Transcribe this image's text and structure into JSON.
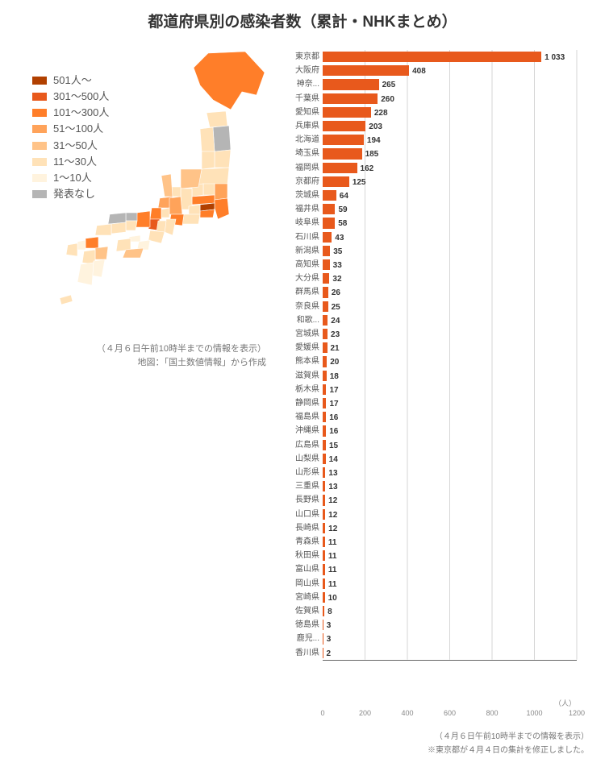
{
  "title": "都道府県別の感染者数（累計・NHKまとめ）",
  "title_fontsize": 19,
  "title_color": "#333333",
  "background_color": "#ffffff",
  "legend": {
    "items": [
      {
        "label": "501人～",
        "color": "#b14000"
      },
      {
        "label": "301～500人",
        "color": "#e8591c"
      },
      {
        "label": "101～300人",
        "color": "#ff7e29"
      },
      {
        "label": "51～100人",
        "color": "#ffa35a"
      },
      {
        "label": "31～50人",
        "color": "#ffc388"
      },
      {
        "label": "11～30人",
        "color": "#ffe2b8"
      },
      {
        "label": "1～10人",
        "color": "#fff3de"
      },
      {
        "label": "発表なし",
        "color": "#b5b5b5"
      }
    ],
    "font_size": 13,
    "text_color": "#555555"
  },
  "map_captions": {
    "line1": "（４月６日午前10時半までの情報を表示）",
    "line2": "地図：「国土数値情報」から作成"
  },
  "bar_chart": {
    "type": "bar-horizontal",
    "xmin": 0,
    "xmax": 1200,
    "xtick_step": 200,
    "x_unit": "（人）",
    "grid_color": "#cccccc",
    "axis_color": "#666666",
    "tick_font_size": 9,
    "tick_color": "#888888",
    "bar_color": "#e8591c",
    "label_font_size": 10,
    "label_color": "#555555",
    "value_font_size": 10,
    "value_color": "#333333",
    "row_height": 17.2,
    "bars": [
      {
        "label": "東京都",
        "value": 1033,
        "display": "1 033"
      },
      {
        "label": "大阪府",
        "value": 408
      },
      {
        "label": "神奈...",
        "value": 265
      },
      {
        "label": "千葉県",
        "value": 260
      },
      {
        "label": "愛知県",
        "value": 228
      },
      {
        "label": "兵庫県",
        "value": 203
      },
      {
        "label": "北海道",
        "value": 194
      },
      {
        "label": "埼玉県",
        "value": 185
      },
      {
        "label": "福岡県",
        "value": 162
      },
      {
        "label": "京都府",
        "value": 125
      },
      {
        "label": "茨城県",
        "value": 64
      },
      {
        "label": "福井県",
        "value": 59
      },
      {
        "label": "岐阜県",
        "value": 58
      },
      {
        "label": "石川県",
        "value": 43
      },
      {
        "label": "新潟県",
        "value": 35
      },
      {
        "label": "高知県",
        "value": 33
      },
      {
        "label": "大分県",
        "value": 32
      },
      {
        "label": "群馬県",
        "value": 26
      },
      {
        "label": "奈良県",
        "value": 25
      },
      {
        "label": "和歌...",
        "value": 24
      },
      {
        "label": "宮城県",
        "value": 23
      },
      {
        "label": "愛媛県",
        "value": 21
      },
      {
        "label": "熊本県",
        "value": 20
      },
      {
        "label": "滋賀県",
        "value": 18
      },
      {
        "label": "栃木県",
        "value": 17
      },
      {
        "label": "静岡県",
        "value": 17
      },
      {
        "label": "福島県",
        "value": 16
      },
      {
        "label": "沖縄県",
        "value": 16
      },
      {
        "label": "広島県",
        "value": 15
      },
      {
        "label": "山梨県",
        "value": 14
      },
      {
        "label": "山形県",
        "value": 13
      },
      {
        "label": "三重県",
        "value": 13
      },
      {
        "label": "長野県",
        "value": 12
      },
      {
        "label": "山口県",
        "value": 12
      },
      {
        "label": "長崎県",
        "value": 12
      },
      {
        "label": "青森県",
        "value": 11
      },
      {
        "label": "秋田県",
        "value": 11
      },
      {
        "label": "富山県",
        "value": 11
      },
      {
        "label": "岡山県",
        "value": 11
      },
      {
        "label": "宮崎県",
        "value": 10
      },
      {
        "label": "佐賀県",
        "value": 8
      },
      {
        "label": "徳島県",
        "value": 3
      },
      {
        "label": "鹿児...",
        "value": 3
      },
      {
        "label": "香川県",
        "value": 2
      }
    ]
  },
  "footnote1": "（４月６日午前10時半までの情報を表示）",
  "footnote2": "※東京都が４月４日の集計を修正しました。",
  "map": {
    "stroke": "#ffffff",
    "stroke_width": 0.6,
    "colors": {
      "c0": "#b5b5b5",
      "c1": "#fff3de",
      "c2": "#ffe2b8",
      "c3": "#ffc388",
      "c4": "#ffa35a",
      "c5": "#ff7e29",
      "c6": "#e8591c",
      "c7": "#b14000"
    }
  }
}
